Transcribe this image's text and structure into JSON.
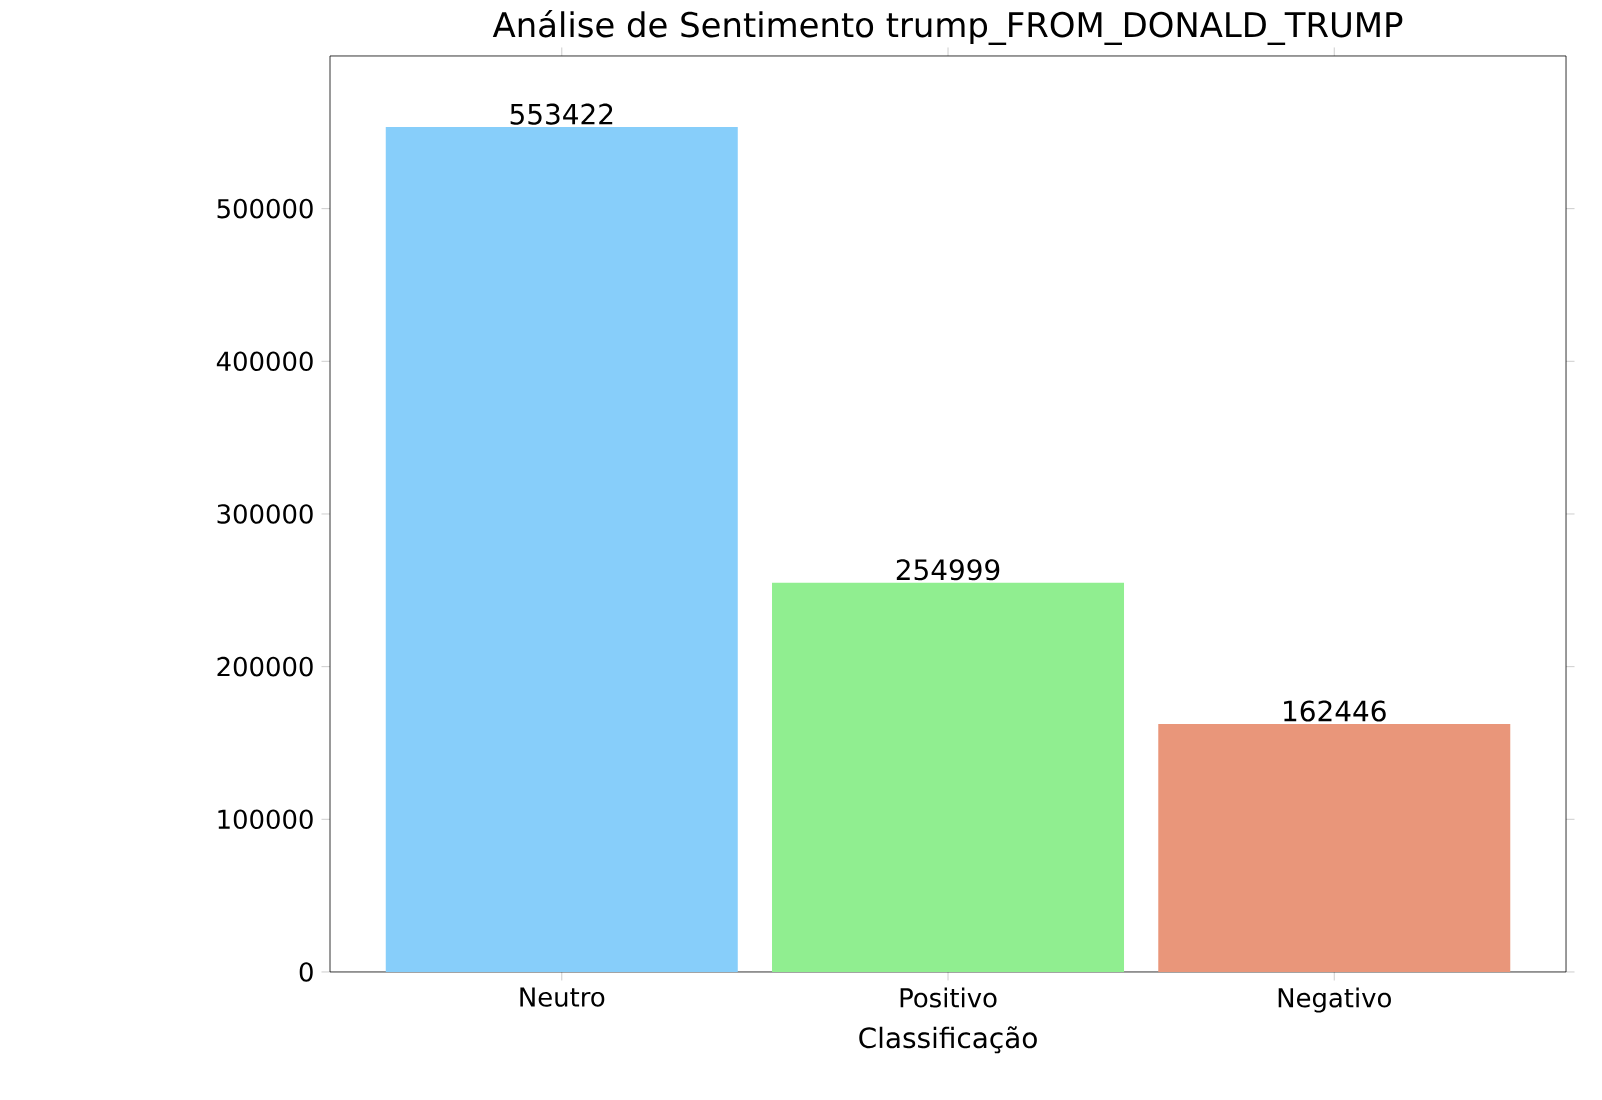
{
  "chart_data": {
    "type": "bar",
    "title": "Análise de Sentimento trump_FROM_DONALD_TRUMP",
    "xlabel": "Classificação",
    "categories": [
      "Neutro",
      "Positivo",
      "Negativo"
    ],
    "values": [
      553422,
      254999,
      162446
    ],
    "colors": [
      "#87cefa",
      "#90ee90",
      "#e9967a"
    ],
    "ylim": [
      0,
      600000
    ],
    "yticks": [
      0,
      100000,
      200000,
      300000,
      400000,
      500000
    ],
    "data_labels": true
  }
}
